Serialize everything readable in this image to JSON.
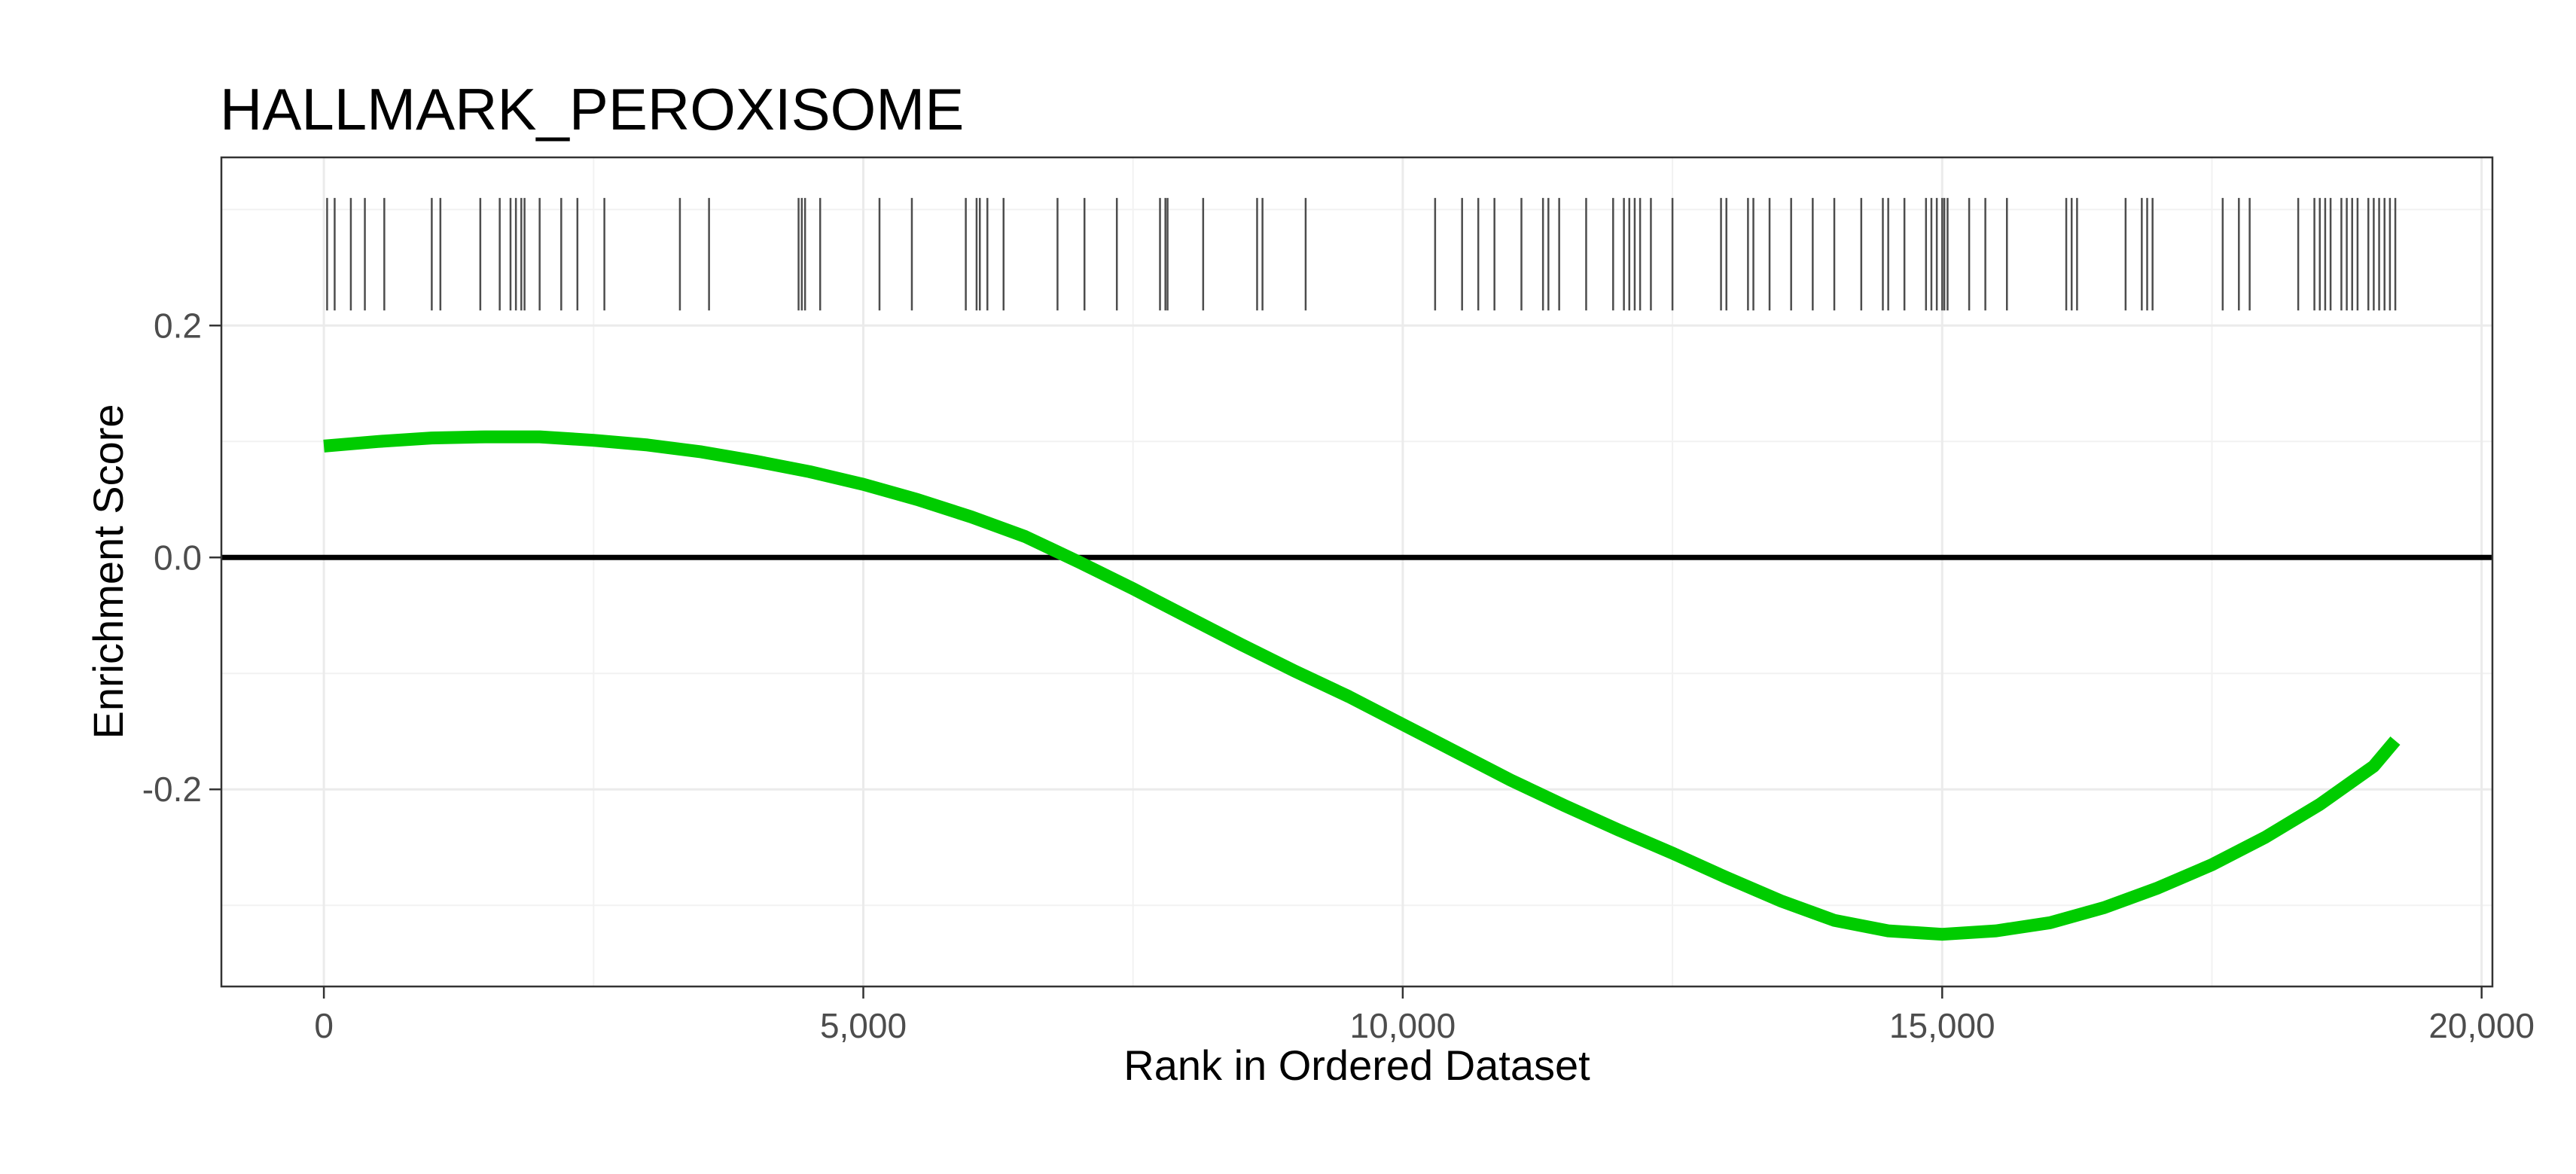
{
  "chart_data": {
    "type": "line",
    "title": "HALLMARK_PEROXISOME",
    "xlabel": "Rank in Ordered Dataset",
    "ylabel": "Enrichment Score",
    "xlim": [
      -950,
      20100
    ],
    "ylim": [
      -0.37,
      0.345
    ],
    "x_ticks": [
      0,
      5000,
      10000,
      15000,
      20000
    ],
    "x_tick_labels": [
      "0",
      "5,000",
      "10,000",
      "15,000",
      "20,000"
    ],
    "y_ticks": [
      -0.2,
      0.0,
      0.2
    ],
    "y_tick_labels": [
      "-0.2",
      "0.0",
      "0.2"
    ],
    "grid": true,
    "line_color": "#00CC00",
    "zero_line_color": "#000000",
    "hit_color": "#4d4d4d",
    "hit_band": [
      0.213,
      0.31
    ],
    "series": [
      {
        "x": [
          0,
          500,
          1000,
          1500,
          2000,
          2500,
          3000,
          3500,
          4000,
          4500,
          5000,
          5500,
          6000,
          6500,
          7000,
          7500,
          8000,
          8500,
          9000,
          9500,
          10000,
          10500,
          11000,
          11500,
          12000,
          12500,
          13000,
          13500,
          14000,
          14500,
          15000,
          15500,
          16000,
          16500,
          17000,
          17500,
          18000,
          18500,
          19000,
          19200
        ],
        "values": [
          0.096,
          0.1,
          0.103,
          0.104,
          0.104,
          0.101,
          0.097,
          0.091,
          0.083,
          0.074,
          0.063,
          0.05,
          0.035,
          0.018,
          -0.004,
          -0.027,
          -0.051,
          -0.075,
          -0.098,
          -0.12,
          -0.144,
          -0.168,
          -0.192,
          -0.214,
          -0.235,
          -0.255,
          -0.276,
          -0.296,
          -0.313,
          -0.322,
          -0.325,
          -0.322,
          -0.315,
          -0.302,
          -0.285,
          -0.265,
          -0.241,
          -0.213,
          -0.18,
          -0.158
        ]
      }
    ],
    "hits": [
      30,
      100,
      250,
      380,
      560,
      1000,
      1080,
      1450,
      1630,
      1730,
      1780,
      1830,
      1860,
      2000,
      2200,
      2350,
      2600,
      3300,
      3570,
      4400,
      4430,
      4460,
      4600,
      5150,
      5450,
      5950,
      6050,
      6080,
      6150,
      6300,
      6800,
      7050,
      7350,
      7750,
      7800,
      7820,
      8150,
      8650,
      8700,
      9100,
      10300,
      10550,
      10700,
      10850,
      11100,
      11300,
      11350,
      11450,
      11700,
      11950,
      12050,
      12100,
      12150,
      12200,
      12300,
      12500,
      12950,
      13000,
      13200,
      13250,
      13400,
      13600,
      13800,
      14000,
      14250,
      14450,
      14500,
      14650,
      14850,
      14900,
      14950,
      15000,
      15020,
      15050,
      15250,
      15400,
      15600,
      16150,
      16200,
      16250,
      16700,
      16850,
      16900,
      16950,
      17600,
      17750,
      17850,
      18300,
      18450,
      18500,
      18550,
      18600,
      18700,
      18750,
      18800,
      18850,
      18950,
      19000,
      19050,
      19100,
      19150,
      19200
    ]
  }
}
